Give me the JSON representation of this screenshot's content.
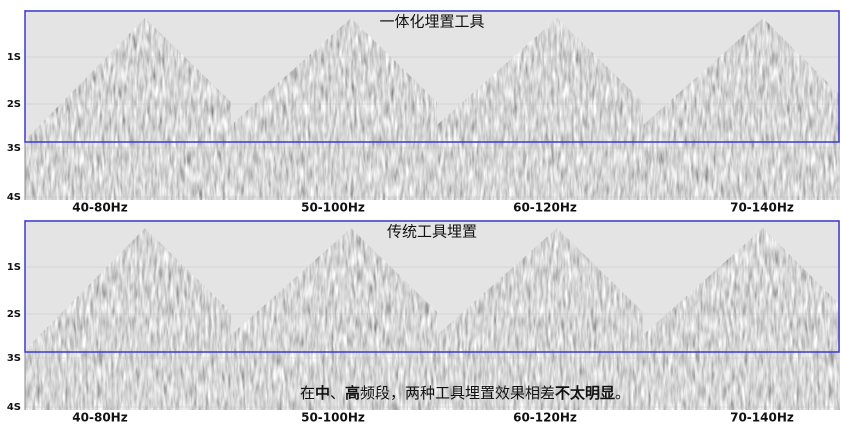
{
  "panels": [
    {
      "title": "一体化埋置工具",
      "y_labels": [
        "1S",
        "2S",
        "3S",
        "4S"
      ],
      "bands": [
        "40-80Hz",
        "50-100Hz",
        "60-120Hz",
        "70-140Hz"
      ]
    },
    {
      "title": "传统工具埋置",
      "y_labels": [
        "1S",
        "2S",
        "3S",
        "4S"
      ],
      "bands": [
        "40-80Hz",
        "50-100Hz",
        "60-120Hz",
        "70-140Hz"
      ]
    }
  ],
  "caption": [
    {
      "text": "在",
      "bold": false
    },
    {
      "text": "中",
      "bold": true
    },
    {
      "text": "、",
      "bold": false
    },
    {
      "text": "高",
      "bold": true
    },
    {
      "text": "频段，两种工具埋置效果相差",
      "bold": false
    },
    {
      "text": "不太明显",
      "bold": true
    },
    {
      "text": "。",
      "bold": false
    }
  ]
}
